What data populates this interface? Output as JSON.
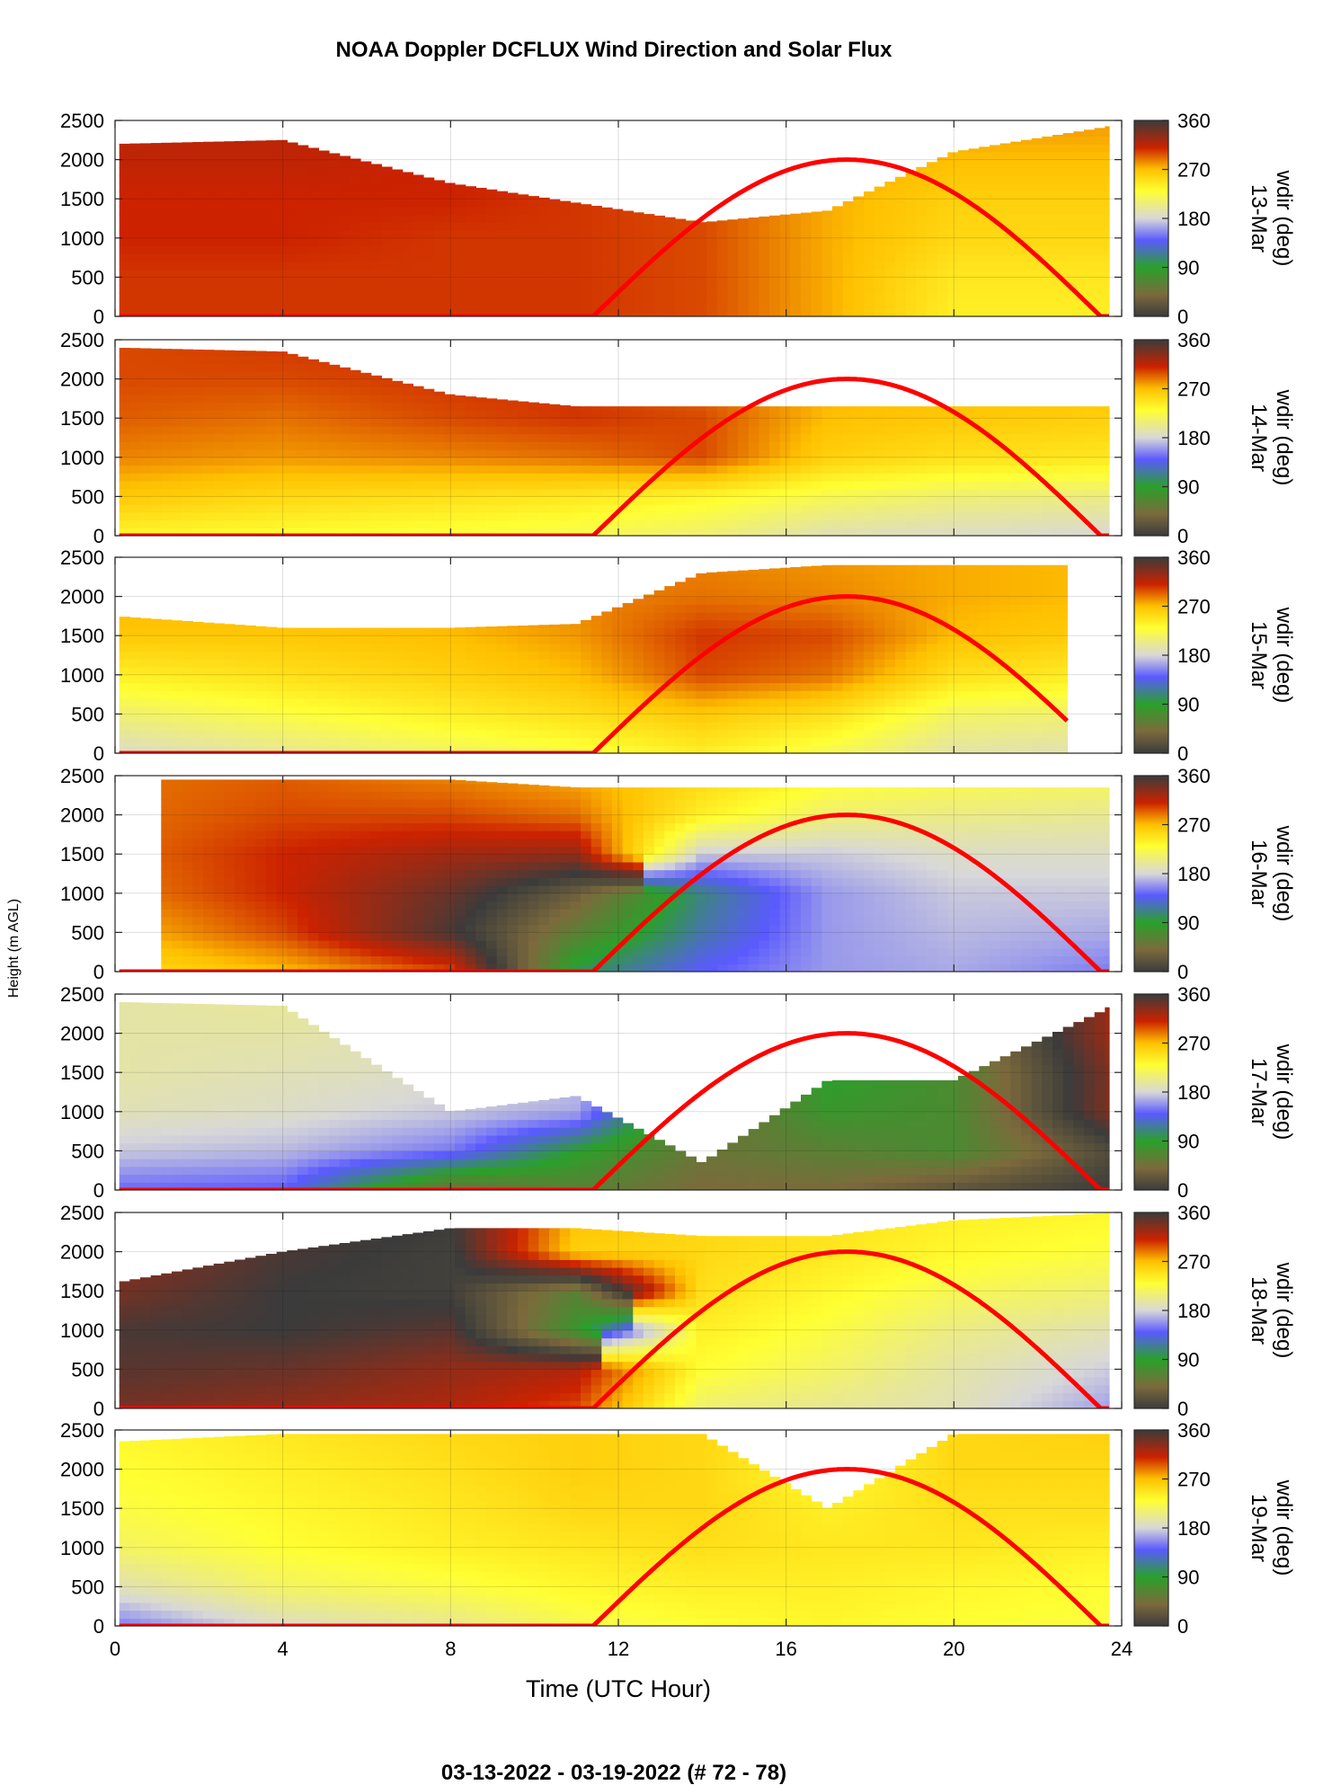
{
  "chart_data": {
    "type": "heatmap",
    "title": "NOAA Doppler DCFLUX Wind Direction and Solar Flux",
    "xlabel": "Time (UTC Hour)",
    "ylabel": "Height (m AGL)",
    "colorbar_label": "wdir (deg)",
    "footer": "03-13-2022 - 03-19-2022   (# 72 - 78)",
    "xlim": [
      0,
      24
    ],
    "x_ticks": [
      "0",
      "4",
      "8",
      "12",
      "16",
      "20",
      "24"
    ],
    "x_tick_values": [
      0,
      4,
      8,
      12,
      16,
      20,
      24
    ],
    "ylim": [
      0,
      2500
    ],
    "y_ticks": [
      "0",
      "500",
      "1000",
      "1500",
      "2000",
      "2500"
    ],
    "y_tick_values": [
      0,
      500,
      1000,
      1500,
      2000,
      2500
    ],
    "color_range": [
      0,
      360
    ],
    "colorbar_ticks": [
      "0",
      "90",
      "180",
      "270",
      "360"
    ],
    "colorbar_tick_values": [
      0,
      90,
      180,
      270,
      360
    ],
    "grid": true,
    "colormap_stops": [
      {
        "deg": 0,
        "color": "#3b3b3b"
      },
      {
        "deg": 40,
        "color": "#7c6a3c"
      },
      {
        "deg": 90,
        "color": "#2aa02a"
      },
      {
        "deg": 140,
        "color": "#5a5aff"
      },
      {
        "deg": 180,
        "color": "#d8d8d8"
      },
      {
        "deg": 230,
        "color": "#ffff33"
      },
      {
        "deg": 270,
        "color": "#ffc000"
      },
      {
        "deg": 310,
        "color": "#cc2200"
      },
      {
        "deg": 360,
        "color": "#3b3b3b"
      }
    ],
    "solar_flux_color": "#ff0000",
    "solar_flux_curve": {
      "sunrise_hour": 11.4,
      "sunset_hour": 23.5,
      "peak_hour": 17.3,
      "peak_display_height": 2000
    },
    "panels": [
      {
        "date": "13-Mar",
        "time_range": [
          0.1,
          23.7
        ],
        "time_points": [
          0,
          4,
          8,
          11,
          14,
          17,
          20,
          24
        ],
        "heights": [
          0,
          500,
          1000,
          1500,
          2000,
          2500
        ],
        "wdir_deg": [
          [
            305,
            305,
            305,
            305,
            300,
            275,
            240,
            240
          ],
          [
            305,
            305,
            305,
            305,
            300,
            275,
            245,
            245
          ],
          [
            310,
            310,
            305,
            305,
            300,
            275,
            255,
            255
          ],
          [
            310,
            310,
            310,
            305,
            300,
            275,
            260,
            260
          ],
          [
            315,
            315,
            310,
            305,
            300,
            280,
            270,
            270
          ],
          [
            315,
            315,
            310,
            305,
            300,
            285,
            280,
            280
          ]
        ],
        "top_height": [
          2200,
          2250,
          1700,
          1450,
          1200,
          1350,
          2100,
          2450
        ],
        "solar_end_hour": 23.7
      },
      {
        "date": "14-Mar",
        "time_range": [
          0.1,
          23.7
        ],
        "time_points": [
          0,
          4,
          8,
          11,
          14,
          17,
          20,
          24
        ],
        "heights": [
          0,
          500,
          1000,
          1500,
          2000,
          2500
        ],
        "wdir_deg": [
          [
            235,
            230,
            225,
            220,
            210,
            190,
            185,
            180
          ],
          [
            265,
            255,
            250,
            245,
            235,
            220,
            210,
            205
          ],
          [
            285,
            280,
            285,
            290,
            300,
            260,
            250,
            245
          ],
          [
            295,
            290,
            300,
            305,
            300,
            270,
            265,
            260
          ],
          [
            300,
            300,
            305,
            305,
            290,
            275,
            270,
            270
          ],
          [
            300,
            305,
            305,
            300,
            285,
            280,
            275,
            275
          ]
        ],
        "top_height": [
          2400,
          2350,
          1800,
          1650,
          1650,
          1650,
          1650,
          1650
        ],
        "solar_end_hour": 23.7
      },
      {
        "date": "15-Mar",
        "time_range": [
          0.1,
          22.7
        ],
        "time_points": [
          0,
          4,
          8,
          11,
          14,
          17,
          20,
          24
        ],
        "heights": [
          0,
          500,
          1000,
          1500,
          2000,
          2500
        ],
        "wdir_deg": [
          [
            185,
            200,
            215,
            225,
            240,
            220,
            195,
            190
          ],
          [
            210,
            225,
            240,
            250,
            265,
            250,
            215,
            210
          ],
          [
            240,
            250,
            260,
            270,
            300,
            290,
            250,
            240
          ],
          [
            265,
            265,
            270,
            280,
            305,
            300,
            270,
            260
          ],
          [
            275,
            275,
            280,
            285,
            290,
            285,
            275,
            270
          ],
          [
            280,
            280,
            285,
            285,
            285,
            280,
            275,
            270
          ]
        ],
        "top_height": [
          1750,
          1600,
          1600,
          1650,
          2300,
          2400,
          2400,
          2400
        ],
        "solar_end_hour": 22.7
      },
      {
        "date": "16-Mar",
        "time_range": [
          1.1,
          23.7
        ],
        "time_points": [
          0,
          4,
          8,
          11,
          14,
          17,
          20,
          24
        ],
        "heights": [
          0,
          500,
          1000,
          1500,
          2000,
          2500
        ],
        "wdir_deg": [
          [
            250,
            270,
            300,
            100,
            140,
            160,
            165,
            150
          ],
          [
            270,
            300,
            355,
            60,
            120,
            160,
            170,
            165
          ],
          [
            285,
            310,
            345,
            30,
            110,
            160,
            175,
            175
          ],
          [
            290,
            310,
            325,
            330,
            175,
            175,
            185,
            185
          ],
          [
            290,
            300,
            300,
            290,
            240,
            210,
            205,
            200
          ],
          [
            290,
            295,
            285,
            275,
            255,
            235,
            225,
            220
          ]
        ],
        "top_height": [
          2450,
          2450,
          2450,
          2350,
          2350,
          2350,
          2350,
          2350
        ],
        "solar_end_hour": 23.7
      },
      {
        "date": "17-Mar",
        "time_range": [
          0.1,
          23.7
        ],
        "time_points": [
          0,
          4,
          8,
          11,
          14,
          17,
          20,
          24
        ],
        "heights": [
          0,
          500,
          1000,
          1500,
          2000,
          2500
        ],
        "wdir_deg": [
          [
            145,
            140,
            40,
            60,
            40,
            40,
            20,
            0
          ],
          [
            175,
            170,
            150,
            90,
            50,
            60,
            70,
            10
          ],
          [
            190,
            185,
            175,
            165,
            40,
            80,
            70,
            330
          ],
          [
            195,
            190,
            185,
            175,
            40,
            90,
            70,
            330
          ],
          [
            195,
            195,
            190,
            200,
            40,
            90,
            60,
            320
          ],
          [
            195,
            200,
            190,
            210,
            40,
            90,
            60,
            320
          ]
        ],
        "top_height": [
          2400,
          2350,
          1000,
          1200,
          350,
          1400,
          1400,
          2400
        ],
        "solar_end_hour": 23.7
      },
      {
        "date": "18-Mar",
        "time_range": [
          0.1,
          23.7
        ],
        "time_points": [
          0,
          4,
          8,
          11,
          14,
          17,
          20,
          24
        ],
        "heights": [
          0,
          500,
          1000,
          1500,
          2000,
          2500
        ],
        "wdir_deg": [
          [
            340,
            330,
            320,
            300,
            210,
            200,
            190,
            160
          ],
          [
            350,
            345,
            330,
            320,
            230,
            215,
            195,
            175
          ],
          [
            355,
            0,
            350,
            80,
            240,
            225,
            205,
            190
          ],
          [
            340,
            0,
            5,
            60,
            250,
            235,
            220,
            210
          ],
          [
            330,
            355,
            5,
            260,
            255,
            245,
            235,
            225
          ],
          [
            320,
            350,
            0,
            270,
            255,
            250,
            240,
            235
          ]
        ],
        "top_height": [
          1600,
          2000,
          2300,
          2300,
          2200,
          2200,
          2400,
          2500
        ],
        "solar_end_hour": 23.7
      },
      {
        "date": "19-Mar",
        "time_range": [
          0.1,
          23.7
        ],
        "time_points": [
          0,
          4,
          8,
          11,
          14,
          17,
          20,
          24
        ],
        "heights": [
          0,
          500,
          1000,
          1500,
          2000,
          2500
        ],
        "wdir_deg": [
          [
            150,
            185,
            200,
            220,
            230,
            235,
            230,
            225
          ],
          [
            190,
            215,
            225,
            235,
            240,
            240,
            235,
            230
          ],
          [
            215,
            230,
            240,
            245,
            250,
            245,
            245,
            240
          ],
          [
            225,
            235,
            245,
            255,
            255,
            240,
            250,
            250
          ],
          [
            230,
            240,
            250,
            260,
            255,
            230,
            255,
            255
          ],
          [
            235,
            245,
            255,
            260,
            255,
            230,
            255,
            260
          ]
        ],
        "top_height": [
          2350,
          2450,
          2450,
          2450,
          2450,
          1500,
          2450,
          2450
        ],
        "solar_end_hour": 23.7
      }
    ]
  }
}
